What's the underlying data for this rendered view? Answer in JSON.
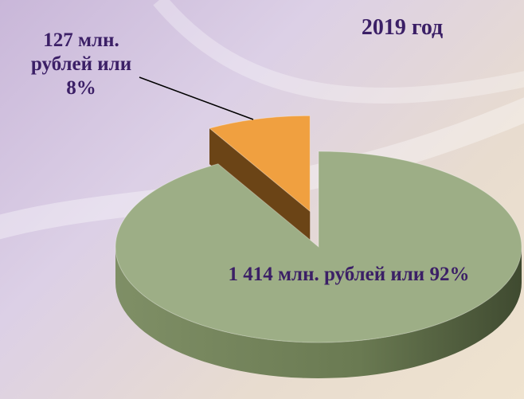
{
  "chart_data": {
    "type": "pie3d",
    "title": "2019 год",
    "categories": [
      "127 млн. рублей или 8%",
      "1 414 млн. рублей или 92%"
    ],
    "values": [
      127,
      1414
    ],
    "value_labels": [
      "127 млн. рублей или 8%",
      "1 414 млн. рублей или 92%"
    ],
    "colors": [
      "#f0a040",
      "#9dae86"
    ]
  }
}
